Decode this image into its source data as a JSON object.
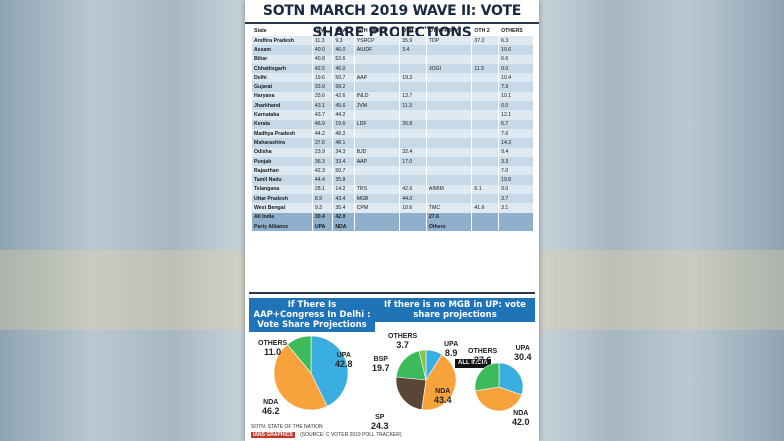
{
  "title": "SOTN MARCH 2019 WAVE II: VOTE SHARE PROJECTIONS",
  "table": {
    "headers": [
      "State",
      "UPA",
      "NDA",
      "OTH PARTY",
      "OTH 1",
      "OTH PARTY",
      "OTH 2",
      "OTHERS"
    ],
    "rows": [
      [
        "Andhra Pradesh",
        "11.3",
        "9.3",
        "YSRCP",
        "35.9",
        "TDP",
        "37.2",
        "6.3"
      ],
      [
        "Assam",
        "40.0",
        "46.0",
        "AIUDF",
        "3.4",
        "",
        "",
        "10.6"
      ],
      [
        "Bihar",
        "40.8",
        "52.6",
        "",
        "",
        "",
        "",
        "6.6"
      ],
      [
        "Chhattisgarh",
        "42.5",
        "46.0",
        "",
        "",
        "JOGI",
        "11.5",
        "0.0"
      ],
      [
        "Delhi",
        "19.6",
        "50.7",
        "AAP",
        "19.3",
        "",
        "",
        "10.4"
      ],
      [
        "Gujarat",
        "33.9",
        "58.2",
        "",
        "",
        "",
        "",
        "7.9"
      ],
      [
        "Haryana",
        "33.6",
        "42.6",
        "INLD",
        "13.7",
        "",
        "",
        "10.1"
      ],
      [
        "Jharkhand",
        "43.1",
        "45.6",
        "JVM",
        "11.3",
        "",
        "",
        "0.0"
      ],
      [
        "Karnataka",
        "43.7",
        "44.2",
        "",
        "",
        "",
        "",
        "12.1"
      ],
      [
        "Kerala",
        "46.9",
        "19.6",
        "LDF",
        "26.8",
        "",
        "",
        "6.7"
      ],
      [
        "Madhya Pradesh",
        "44.2",
        "48.2",
        "",
        "",
        "",
        "",
        "7.6"
      ],
      [
        "Maharashtra",
        "37.6",
        "48.1",
        "",
        "",
        "",
        "",
        "14.3"
      ],
      [
        "Odisha",
        "23.9",
        "34.3",
        "BJD",
        "32.4",
        "",
        "",
        "9.4"
      ],
      [
        "Punjab",
        "36.3",
        "33.4",
        "AAP",
        "17.0",
        "",
        "",
        "3.3"
      ],
      [
        "Rajasthan",
        "42.3",
        "50.7",
        "",
        "",
        "",
        "",
        "7.0"
      ],
      [
        "Tamil Nadu",
        "44.4",
        "35.8",
        "",
        "",
        "",
        "",
        "19.8"
      ],
      [
        "Telangana",
        "28.1",
        "14.2",
        "TRS",
        "42.6",
        "AIMIM",
        "6.1",
        "9.0"
      ],
      [
        "Uttar Pradesh",
        "8.9",
        "43.4",
        "MGB",
        "44.0",
        "",
        "",
        "3.7"
      ],
      [
        "West Bengal",
        "9.3",
        "35.4",
        "CPM",
        "10.6",
        "TMC",
        "41.6",
        "3.1"
      ]
    ],
    "all_india": [
      "All India",
      "30.4",
      "42.0",
      "",
      "",
      "27.6",
      "",
      ""
    ],
    "alliance": [
      "Party Alliance",
      "UPA",
      "NDA",
      "",
      "",
      "Others",
      "",
      ""
    ]
  },
  "panels": {
    "delhi_title": "If There Is AAP+Congress In Delhi : Vote Share Projections",
    "up_title": "If there is no MGB in UP: vote share projections",
    "all_india_badge": "ALL INDIA"
  },
  "footer": {
    "note": "SOTN: STATE OF THE NATION",
    "logo": "IANS GRAPHICS",
    "source": "(SOURCE: C VOTER 2019 POLL TRACKER)"
  },
  "chart_data": [
    {
      "type": "pie",
      "title": "If There Is AAP+Congress In Delhi : Vote Share Projections",
      "slices": [
        {
          "label": "UPA",
          "value": 42.8,
          "color": "#3aaee0"
        },
        {
          "label": "NDA",
          "value": 46.2,
          "color": "#f7a23b"
        },
        {
          "label": "OTHERS",
          "value": 11.0,
          "color": "#3dbb5c"
        }
      ]
    },
    {
      "type": "pie",
      "title": "If there is no MGB in UP: vote share projections",
      "slices": [
        {
          "label": "UPA",
          "value": 8.9,
          "color": "#3aaee0"
        },
        {
          "label": "NDA",
          "value": 43.4,
          "color": "#f7a23b"
        },
        {
          "label": "SP",
          "value": 24.3,
          "color": "#5a4636"
        },
        {
          "label": "BSP",
          "value": 19.7,
          "color": "#3dbb5c"
        },
        {
          "label": "OTHERS",
          "value": 3.7,
          "color": "#8bc34a"
        }
      ]
    },
    {
      "type": "pie",
      "title": "ALL INDIA",
      "slices": [
        {
          "label": "UPA",
          "value": 30.4,
          "color": "#3aaee0"
        },
        {
          "label": "NDA",
          "value": 42.0,
          "color": "#f7a23b"
        },
        {
          "label": "OTHERS",
          "value": 27.6,
          "color": "#3dbb5c"
        }
      ]
    }
  ]
}
